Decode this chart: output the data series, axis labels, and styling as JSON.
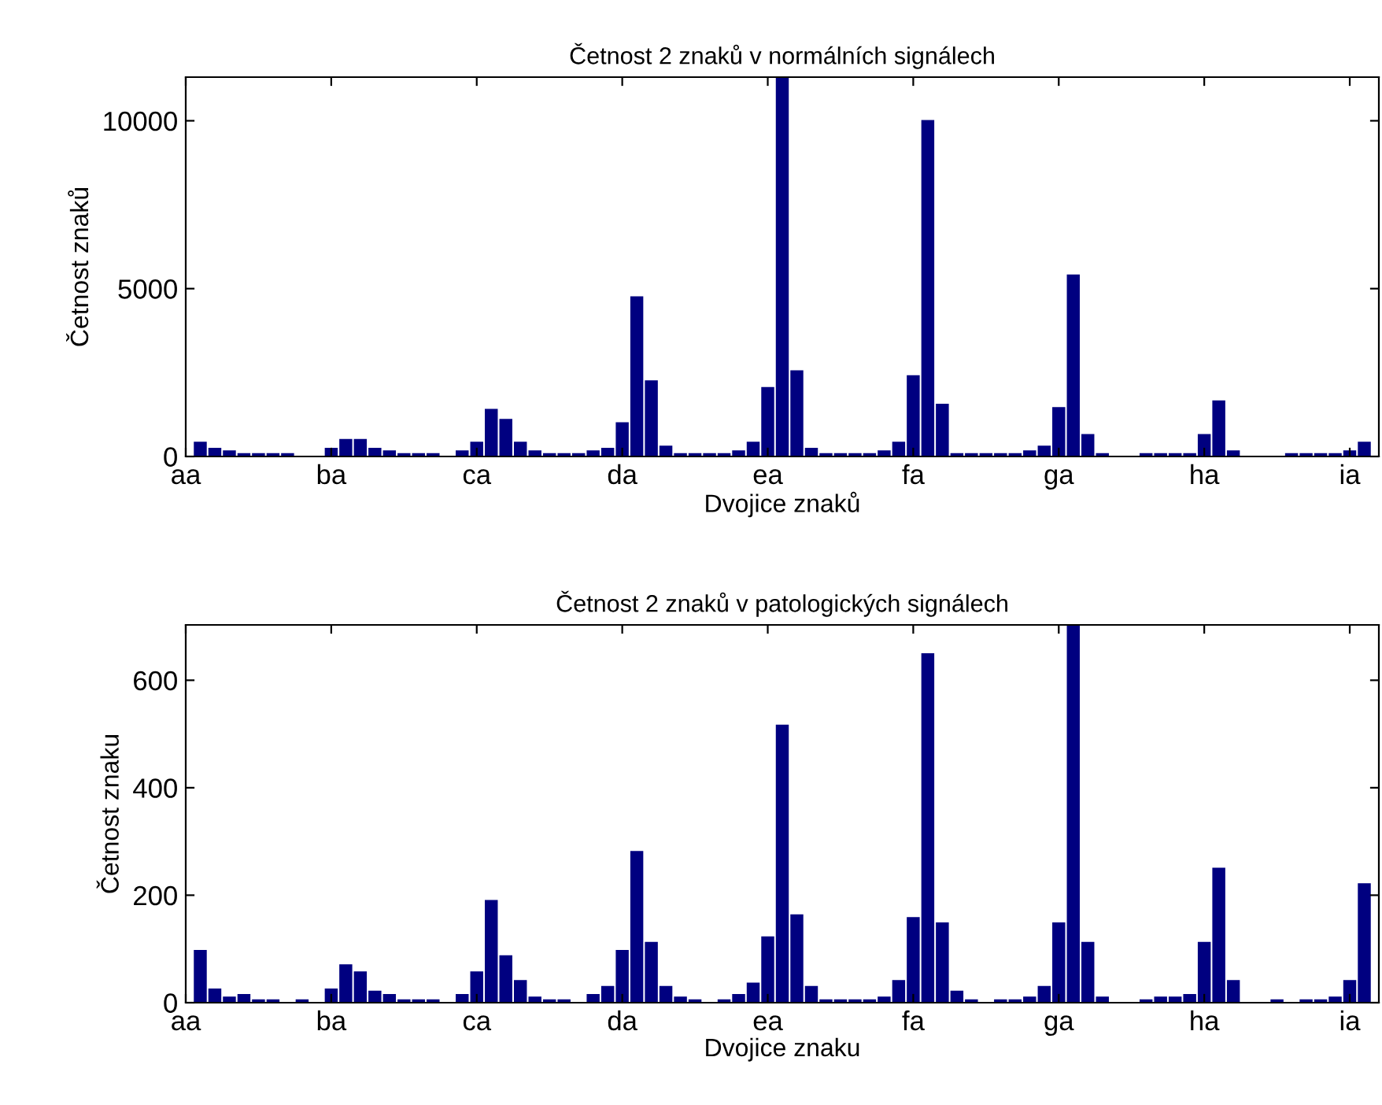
{
  "chart_data": [
    {
      "type": "bar",
      "title": "Četnost 2 znaků v normálních signálech",
      "xlabel": "Dvojice znaků",
      "ylabel": "Četnost znaků",
      "color": "#000080",
      "categories": [
        "aa",
        null,
        null,
        null,
        null,
        null,
        null,
        null,
        null,
        null,
        "ba",
        null,
        null,
        null,
        null,
        null,
        null,
        null,
        null,
        null,
        "ca",
        null,
        null,
        null,
        null,
        null,
        null,
        null,
        null,
        null,
        "da",
        null,
        null,
        null,
        null,
        null,
        null,
        null,
        null,
        null,
        "ea",
        null,
        null,
        null,
        null,
        null,
        null,
        null,
        null,
        null,
        "fa",
        null,
        null,
        null,
        null,
        null,
        null,
        null,
        null,
        null,
        "ga",
        null,
        null,
        null,
        null,
        null,
        null,
        null,
        null,
        null,
        "ha",
        null,
        null,
        null,
        null,
        null,
        null,
        null,
        null,
        null,
        "ia",
        null
      ],
      "values": [
        null,
        420,
        240,
        160,
        80,
        80,
        80,
        80,
        0,
        0,
        240,
        500,
        500,
        240,
        160,
        80,
        80,
        80,
        0,
        160,
        420,
        1400,
        1100,
        420,
        160,
        80,
        80,
        80,
        160,
        240,
        1000,
        4750,
        2250,
        300,
        80,
        80,
        80,
        80,
        160,
        420,
        2050,
        11300,
        2550,
        240,
        80,
        80,
        80,
        80,
        160,
        420,
        2400,
        10000,
        1550,
        80,
        80,
        80,
        80,
        80,
        160,
        300,
        1450,
        5400,
        650,
        80,
        0,
        0,
        80,
        80,
        80,
        80,
        650,
        1650,
        160,
        0,
        0,
        0,
        80,
        80,
        80,
        80,
        160,
        420
      ],
      "ylim": [
        0,
        11300
      ],
      "yticks": [
        0,
        5000,
        10000
      ],
      "grid": false
    },
    {
      "type": "bar",
      "title": "Četnost 2 znaků v patologických signálech",
      "xlabel": "Dvojice znaku",
      "ylabel": "Četnost znaku",
      "color": "#000080",
      "categories": [
        "aa",
        null,
        null,
        null,
        null,
        null,
        null,
        null,
        null,
        null,
        "ba",
        null,
        null,
        null,
        null,
        null,
        null,
        null,
        null,
        null,
        "ca",
        null,
        null,
        null,
        null,
        null,
        null,
        null,
        null,
        null,
        "da",
        null,
        null,
        null,
        null,
        null,
        null,
        null,
        null,
        null,
        "ea",
        null,
        null,
        null,
        null,
        null,
        null,
        null,
        null,
        null,
        "fa",
        null,
        null,
        null,
        null,
        null,
        null,
        null,
        null,
        null,
        "ga",
        null,
        null,
        null,
        null,
        null,
        null,
        null,
        null,
        null,
        "ha",
        null,
        null,
        null,
        null,
        null,
        null,
        null,
        null,
        null,
        "ia",
        null
      ],
      "values": [
        null,
        97,
        25,
        10,
        15,
        5,
        5,
        0,
        5,
        0,
        25,
        70,
        57,
        21,
        15,
        5,
        5,
        5,
        0,
        15,
        57,
        190,
        87,
        41,
        10,
        5,
        5,
        0,
        15,
        30,
        97,
        281,
        112,
        30,
        10,
        5,
        0,
        5,
        15,
        36,
        122,
        516,
        163,
        30,
        5,
        5,
        5,
        5,
        10,
        41,
        158,
        649,
        148,
        21,
        5,
        0,
        5,
        5,
        10,
        30,
        148,
        703,
        112,
        10,
        0,
        0,
        5,
        10,
        10,
        15,
        112,
        250,
        41,
        0,
        0,
        5,
        0,
        5,
        5,
        10,
        41,
        221
      ],
      "ylim": [
        0,
        703
      ],
      "yticks": [
        0,
        200,
        400,
        600
      ],
      "grid": false
    }
  ]
}
